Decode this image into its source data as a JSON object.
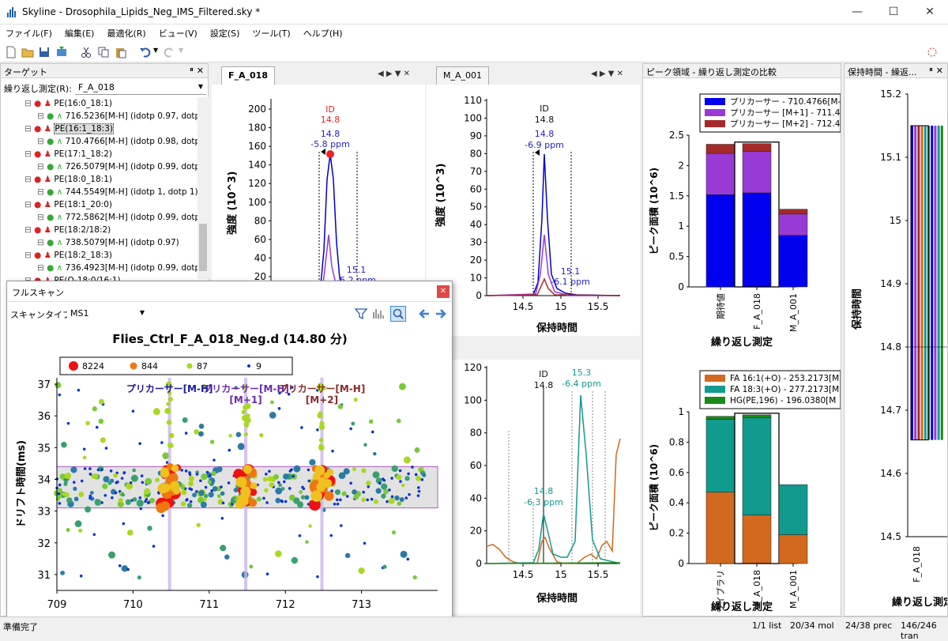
{
  "window": {
    "title": "Skyline - Drosophila_Lipids_Neg_IMS_Filtered.sky *"
  },
  "menu": [
    "ファイル(F)",
    "編集(E)",
    "最適化(R)",
    "ビュー(V)",
    "設定(S)",
    "ツール(T)",
    "ヘルプ(H)"
  ],
  "targets": {
    "title": "ターゲット",
    "replicate_label": "繰り返し測定(R):",
    "replicate_value": "F_A_018",
    "rows": [
      {
        "text": "PE(16:0_18:1)",
        "level": 1
      },
      {
        "text": "716.5236[M-H] (idotp 0.97, dotp",
        "level": 2
      },
      {
        "text": "PE(16:1_18:3)",
        "level": 1,
        "selected": true
      },
      {
        "text": "710.4766[M-H] (idotp 0.98, dotp",
        "level": 2
      },
      {
        "text": "PE(17:1_18:2)",
        "level": 1
      },
      {
        "text": "726.5079[M-H] (idotp 0.99, dotp",
        "level": 2
      },
      {
        "text": "PE(18:0_18:1)",
        "level": 1
      },
      {
        "text": "744.5549[M-H] (idotp 1, dotp 1)",
        "level": 2
      },
      {
        "text": "PE(18:1_20:0)",
        "level": 1
      },
      {
        "text": "772.5862[M-H] (idotp 0.99, dotp",
        "level": 2
      },
      {
        "text": "PE(18:2/18:2)",
        "level": 1
      },
      {
        "text": "738.5079[M-H] (idotp 0.97)",
        "level": 2
      },
      {
        "text": "PE(18:2_18:3)",
        "level": 1
      },
      {
        "text": "736.4923[M-H] (idotp 0.99, dotp",
        "level": 2
      },
      {
        "text": "PE(O-18:0/16:1)",
        "level": 1
      }
    ]
  },
  "chrom1": {
    "tab": "F_A_018",
    "ylabel": "強度 (10^3)",
    "yticks": [
      "200",
      "180",
      "160",
      "140",
      "120",
      "100",
      "80",
      "60",
      "40",
      "20"
    ],
    "ann_id": "ID",
    "ann_id_val": "14.8",
    "ann_blue": "14.8",
    "ann_ppm": "-5.8 ppm",
    "ann_r": "15.1",
    "ann_r2": "-5.2 ppm"
  },
  "chrom2": {
    "tab": "M_A_001",
    "ylabel": "強度 (10^3)",
    "yticks": [
      "110",
      "100",
      "90",
      "80",
      "70",
      "60",
      "50",
      "40",
      "30",
      "20",
      "10",
      "0"
    ],
    "xticks": [
      "14.5",
      "15",
      "15.5"
    ],
    "xlabel": "保持時間",
    "ann_id": "ID",
    "ann_id_val": "14.8",
    "ann_blue": "14.8",
    "ann_ppm": "-6.9 ppm",
    "ann_r": "15.1",
    "ann_r2": "-6.1 ppm"
  },
  "chrom3": {
    "yticks": [
      "120",
      "100",
      "80",
      "60",
      "40",
      "20",
      "0"
    ],
    "xticks": [
      "14.5",
      "15",
      "15.5"
    ],
    "xlabel": "保持時間",
    "ann_id": "ID",
    "ann_id_val": "14.8",
    "ann_teal": "15.3",
    "ann_teal2": "-6.4 ppm",
    "ann_low": "14.8",
    "ann_low2": "-6.3 ppm"
  },
  "peakarea": {
    "title": "ピーク領域 - 繰り返し測定の比較",
    "top": {
      "legend": [
        "プリカーサー - 710.4766[M-H]",
        "プリカーサー [M+1] - 711.4",
        "プリカーサー [M+2] - 712.4"
      ],
      "colors": [
        "#0000ee",
        "#9a3ad6",
        "#a52a2a"
      ],
      "ylabel": "ピーク面積 (10^6)",
      "yticks": [
        "2.5",
        "2",
        "1.5",
        "1",
        "0.5",
        "0"
      ],
      "categories": [
        "期待値",
        "F_A_018",
        "M_A_001"
      ],
      "xlabel": "繰り返し測定"
    },
    "bottom": {
      "legend": [
        "FA 16:1(+O) - 253.2173[M",
        "FA 18:3(+O) - 277.2173[M",
        "HG(PE,196) - 196.0380[M"
      ],
      "colors": [
        "#d2691e",
        "#119a8e",
        "#1a8a1a"
      ],
      "ylabel": "ピーク面積 (10^6)",
      "yticks": [
        "1",
        "0.8",
        "0.6",
        "0.4",
        "0.2",
        "0"
      ],
      "categories": [
        "ライブラリ",
        "F_A_018",
        "M_A_001"
      ],
      "xlabel": "繰り返し測定"
    }
  },
  "chart_data": [
    {
      "type": "bar",
      "title": "",
      "series": [
        {
          "name": "プリカーサー - 710.4766[M-H]",
          "values": [
            1.52,
            1.55,
            0.85
          ]
        },
        {
          "name": "プリカーサー [M+1] - 711.4",
          "values": [
            0.68,
            0.68,
            0.35
          ]
        },
        {
          "name": "プリカーサー [M+2] - 712.4",
          "values": [
            0.15,
            0.13,
            0.08
          ]
        }
      ],
      "categories": [
        "期待値",
        "F_A_018",
        "M_A_001"
      ],
      "ylabel": "ピーク面積 (10^6)",
      "xlabel": "繰り返し測定",
      "ylim": [
        0,
        2.5
      ]
    },
    {
      "type": "bar",
      "title": "",
      "series": [
        {
          "name": "FA 16:1(+O) - 253.2173[M",
          "values": [
            0.47,
            0.32,
            0.19
          ]
        },
        {
          "name": "FA 18:3(+O) - 277.2173[M",
          "values": [
            0.48,
            0.64,
            0.33
          ]
        },
        {
          "name": "HG(PE,196) - 196.0380[M",
          "values": [
            0.02,
            0.02,
            0.0
          ]
        }
      ],
      "categories": [
        "ライブラリ",
        "F_A_018",
        "M_A_001"
      ],
      "ylabel": "ピーク面積 (10^6)",
      "xlabel": "繰り返し測定",
      "ylim": [
        0,
        1
      ]
    },
    {
      "type": "bar",
      "title": "",
      "categories": [
        "F_A_018"
      ],
      "values": [
        15.15
      ],
      "ylabel": "保持時間",
      "xlabel": "繰り返し測定",
      "ylim": [
        14.5,
        15.2
      ]
    },
    {
      "type": "scatter",
      "title": "Flies_Ctrl_F_A_018_Neg.d (14.80 分)",
      "xlabel": "m/z",
      "ylabel": "ドリフト時間(ms)",
      "xlim": [
        709,
        714
      ],
      "ylim": [
        30.5,
        37.2
      ],
      "legend": [
        "8224",
        "844",
        "87",
        "9"
      ]
    }
  ],
  "rt": {
    "title": "保持時間 - 繰返...",
    "ylabel": "保持時間",
    "yticks": [
      "15.2",
      "15.1",
      "15",
      "14.9",
      "14.8",
      "14.7",
      "14.6",
      "14.5"
    ],
    "categories": [
      "F_A_018"
    ],
    "xlabel": "繰り返し測定"
  },
  "fullscan": {
    "title": "フルスキャン",
    "scan_label": "スキャンタイプ:",
    "scan_value": "MS1",
    "chart_title": "Flies_Ctrl_F_A_018_Neg.d (14.80 分)",
    "legend": [
      "8224",
      "844",
      "87",
      "9"
    ],
    "ylabel": "ドリフト時間(ms)",
    "xlabel": "m/z",
    "xticks": [
      "709",
      "710",
      "711",
      "712",
      "713"
    ],
    "yticks": [
      "37",
      "36",
      "35",
      "34",
      "33",
      "32",
      "31"
    ],
    "ann1": "プリカーサー[M-H]",
    "ann2": "プリカーサー[M-H]",
    "ann2b": "[M+1]",
    "ann3": "プリカーサー[M-H]",
    "ann3b": "[M+2]"
  },
  "status": {
    "left": "準備完了",
    "s1": "1/1 list",
    "s2": "20/34 mol",
    "s3": "24/38 prec",
    "s4": "146/246 tran"
  }
}
